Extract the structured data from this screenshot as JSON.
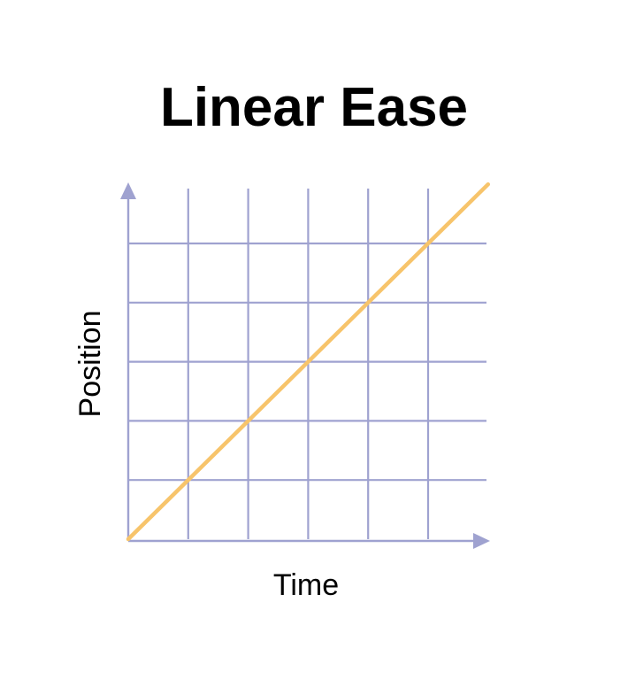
{
  "chart_data": {
    "type": "line",
    "title": "Linear Ease",
    "xlabel": "Time",
    "ylabel": "Position",
    "xlim": [
      0,
      6
    ],
    "ylim": [
      0,
      6
    ],
    "grid": true,
    "gridColor": "#9fa2d0",
    "series": [
      {
        "color": "#f7c46b",
        "x": [
          0,
          6
        ],
        "y": [
          0,
          6
        ]
      }
    ]
  }
}
